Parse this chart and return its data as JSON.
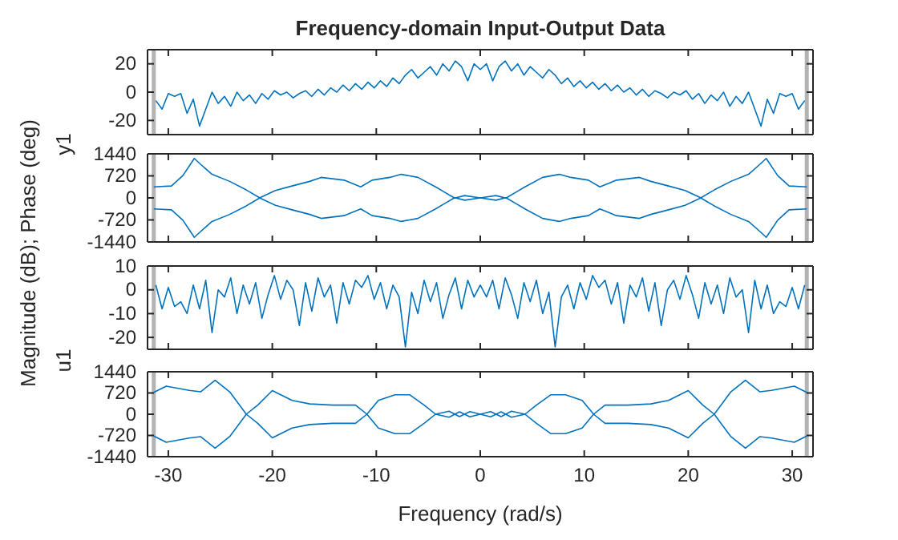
{
  "chart_data": [
    {
      "type": "line",
      "title": "Frequency-domain Input-Output Data",
      "ylabel": "y1",
      "xlim": [
        -32,
        32
      ],
      "xticks": [
        -30,
        -20,
        -10,
        0,
        10,
        20,
        30
      ],
      "ylim": [
        -30,
        30
      ],
      "yticks": [
        -20,
        0,
        20
      ],
      "tick_labels": "y",
      "grid": false,
      "ref_lines": [
        {
          "axis": "x",
          "value": -31.4,
          "color": "#b3b3b3"
        },
        {
          "axis": "x",
          "value": 31.4,
          "color": "#b3b3b3"
        }
      ],
      "x": [
        -31.2,
        -30.6,
        -30,
        -29.4,
        -28.8,
        -28.2,
        -27.6,
        -27,
        -26.4,
        -25.8,
        -25.2,
        -24.6,
        -24,
        -23.4,
        -22.8,
        -22.2,
        -21.6,
        -21,
        -20.4,
        -19.8,
        -19.2,
        -18.6,
        -18,
        -17.4,
        -16.8,
        -16.2,
        -15.6,
        -15,
        -14.4,
        -13.8,
        -13.2,
        -12.6,
        -12,
        -11.4,
        -10.8,
        -10.2,
        -9.6,
        -9,
        -8.4,
        -7.8,
        -7.2,
        -6.6,
        -6,
        -5.4,
        -4.8,
        -4.2,
        -3.6,
        -3,
        -2.4,
        -1.8,
        -1.2,
        -0.6,
        0,
        0.6,
        1.2,
        1.8,
        2.4,
        3,
        3.6,
        4.2,
        4.8,
        5.4,
        6,
        6.6,
        7.2,
        7.8,
        8.4,
        9,
        9.6,
        10.2,
        10.8,
        11.4,
        12,
        12.6,
        13.2,
        13.8,
        14.4,
        15,
        15.6,
        16.2,
        16.8,
        17.4,
        18,
        18.6,
        19.2,
        19.8,
        20.4,
        21,
        21.6,
        22.2,
        22.8,
        23.4,
        24,
        24.6,
        25.2,
        25.8,
        26.4,
        27,
        27.6,
        28.2,
        28.8,
        29.4,
        30,
        30.6,
        31.2
      ],
      "series": [
        {
          "color": "#0072bd",
          "values": [
            -6,
            -12,
            -1,
            -3,
            -1,
            -15,
            -5,
            -24,
            -12,
            0,
            -8,
            -3,
            -10,
            0,
            -6,
            -2,
            -8,
            -1,
            -5,
            1,
            -2,
            0,
            -4,
            -1,
            1,
            -3,
            2,
            -2,
            3,
            0,
            5,
            1,
            6,
            2,
            7,
            3,
            8,
            4,
            10,
            6,
            12,
            16,
            10,
            14,
            18,
            12,
            20,
            15,
            22,
            18,
            8,
            20,
            16,
            20,
            8,
            18,
            22,
            15,
            20,
            12,
            18,
            14,
            10,
            16,
            12,
            6,
            10,
            4,
            8,
            3,
            7,
            2,
            6,
            1,
            5,
            0,
            3,
            -2,
            2,
            -3,
            1,
            -1,
            -4,
            0,
            -2,
            1,
            -5,
            -1,
            -8,
            -2,
            -6,
            0,
            -10,
            -3,
            -8,
            0,
            -12,
            -24,
            -5,
            -15,
            -1,
            -3,
            -1,
            -12,
            -6
          ]
        }
      ]
    },
    {
      "type": "line",
      "ylabel": "Magnitude (dB); Phase (deg)",
      "xlim": [
        -32,
        32
      ],
      "xticks": [
        -30,
        -20,
        -10,
        0,
        10,
        20,
        30
      ],
      "ylim": [
        -1440,
        1440
      ],
      "yticks": [
        -1440,
        -720,
        0,
        720,
        1440
      ],
      "tick_labels": "y",
      "grid": false,
      "ref_lines": [
        {
          "axis": "x",
          "value": -31.4,
          "color": "#b3b3b3"
        },
        {
          "axis": "x",
          "value": 31.4,
          "color": "#b3b3b3"
        }
      ],
      "x": [
        -31.4,
        -29.7,
        -28.6,
        -27.5,
        -26.9,
        -25.8,
        -24.1,
        -22.5,
        -21.1,
        -19.7,
        -18.1,
        -16.4,
        -15.3,
        -13.1,
        -11.5,
        -10.4,
        -8.7,
        -7.6,
        -6,
        -4.3,
        -3.5,
        -2.6,
        -1.5,
        0,
        1.5,
        2.6,
        3.5,
        4.3,
        6,
        7.6,
        8.7,
        10.4,
        11.5,
        13.1,
        15.3,
        16.4,
        18.1,
        19.7,
        21.1,
        22.5,
        24.1,
        25.8,
        26.9,
        27.5,
        28.6,
        29.7,
        31.4
      ],
      "series": [
        {
          "color": "#0072bd",
          "values": [
            360,
            390,
            730,
            1290,
            1100,
            770,
            540,
            260,
            -20,
            -240,
            -390,
            -540,
            -670,
            -580,
            -360,
            -580,
            -670,
            -770,
            -670,
            -360,
            -200,
            -20,
            75,
            0,
            -75,
            20,
            200,
            360,
            670,
            770,
            670,
            580,
            360,
            580,
            670,
            540,
            390,
            240,
            20,
            -260,
            -540,
            -770,
            -1100,
            -1290,
            -730,
            -390,
            -360
          ]
        },
        {
          "color": "#0072bd",
          "values": [
            -360,
            -390,
            -730,
            -1290,
            -1100,
            -770,
            -540,
            -260,
            20,
            240,
            390,
            540,
            670,
            580,
            360,
            580,
            670,
            770,
            670,
            360,
            200,
            20,
            -75,
            0,
            75,
            -20,
            -200,
            -360,
            -670,
            -770,
            -670,
            -580,
            -360,
            -580,
            -670,
            -540,
            -390,
            -240,
            -20,
            260,
            540,
            770,
            1100,
            1290,
            730,
            390,
            360
          ]
        }
      ]
    },
    {
      "type": "line",
      "ylabel": "u1",
      "xlim": [
        -32,
        32
      ],
      "xticks": [
        -30,
        -20,
        -10,
        0,
        10,
        20,
        30
      ],
      "ylim": [
        -25,
        10
      ],
      "yticks": [
        -20,
        -10,
        0,
        10
      ],
      "tick_labels": "y",
      "grid": false,
      "ref_lines": [
        {
          "axis": "x",
          "value": -31.4,
          "color": "#b3b3b3"
        },
        {
          "axis": "x",
          "value": 31.4,
          "color": "#b3b3b3"
        }
      ],
      "x": [
        -31.2,
        -30.6,
        -30,
        -29.4,
        -28.8,
        -28.2,
        -27.6,
        -27,
        -26.4,
        -25.8,
        -25.2,
        -24.6,
        -24,
        -23.4,
        -22.8,
        -22.2,
        -21.6,
        -21,
        -20.4,
        -19.8,
        -19.2,
        -18.6,
        -18,
        -17.4,
        -16.8,
        -16.2,
        -15.6,
        -15,
        -14.4,
        -13.8,
        -13.2,
        -12.6,
        -12,
        -11.4,
        -10.8,
        -10.2,
        -9.6,
        -9,
        -8.4,
        -7.8,
        -7.2,
        -6.6,
        -6,
        -5.4,
        -4.8,
        -4.2,
        -3.6,
        -3,
        -2.4,
        -1.8,
        -1.2,
        -0.6,
        0,
        0.6,
        1.2,
        1.8,
        2.4,
        3,
        3.6,
        4.2,
        4.8,
        5.4,
        6,
        6.6,
        7.2,
        7.8,
        8.4,
        9,
        9.6,
        10.2,
        10.8,
        11.4,
        12,
        12.6,
        13.2,
        13.8,
        14.4,
        15,
        15.6,
        16.2,
        16.8,
        17.4,
        18,
        18.6,
        19.2,
        19.8,
        20.4,
        21,
        21.6,
        22.2,
        22.8,
        23.4,
        24,
        24.6,
        25.2,
        25.8,
        26.4,
        27,
        27.6,
        28.2,
        28.8,
        29.4,
        30,
        30.6,
        31.2
      ],
      "series": [
        {
          "color": "#0072bd",
          "values": [
            2,
            -8,
            1,
            -7,
            -5,
            -10,
            2,
            -8,
            4,
            -18,
            0,
            -3,
            5,
            -10,
            2,
            -6,
            3,
            -12,
            -2,
            6,
            -4,
            4,
            0,
            -15,
            3,
            -9,
            5,
            -3,
            2,
            -14,
            3,
            -6,
            4,
            1,
            6,
            -4,
            3,
            -8,
            2,
            -3,
            -24,
            -1,
            -10,
            4,
            -5,
            3,
            -12,
            -2,
            5,
            -8,
            4,
            -3,
            2,
            -3,
            4,
            -8,
            5,
            -2,
            -12,
            3,
            -5,
            4,
            -10,
            -1,
            -24,
            -3,
            2,
            -8,
            3,
            -4,
            6,
            1,
            4,
            -6,
            3,
            -14,
            2,
            -3,
            5,
            -9,
            3,
            -15,
            0,
            4,
            -4,
            6,
            -2,
            -12,
            3,
            -6,
            2,
            -10,
            5,
            -3,
            0,
            -18,
            4,
            -8,
            2,
            -10,
            -5,
            -7,
            1,
            -8,
            2
          ]
        }
      ]
    },
    {
      "type": "line",
      "xlabel": "Frequency (rad/s)",
      "xlim": [
        -32,
        32
      ],
      "xticks": [
        -30,
        -20,
        -10,
        0,
        10,
        20,
        30
      ],
      "ylim": [
        -1440,
        1440
      ],
      "yticks": [
        -1440,
        -720,
        0,
        720,
        1440
      ],
      "grid": false,
      "ref_lines": [
        {
          "axis": "x",
          "value": -31.4,
          "color": "#b3b3b3"
        },
        {
          "axis": "x",
          "value": 31.4,
          "color": "#b3b3b3"
        }
      ],
      "x": [
        -31.4,
        -30.2,
        -28,
        -26.9,
        -25.5,
        -24.1,
        -22.5,
        -21.4,
        -20,
        -18.1,
        -16.4,
        -14.2,
        -12,
        -10.9,
        -9.8,
        -8.2,
        -6.8,
        -5.4,
        -4.3,
        -3,
        -2,
        -1,
        0,
        1,
        2,
        3,
        4.3,
        5.4,
        6.8,
        8.2,
        9.8,
        10.9,
        12,
        14.2,
        16.4,
        18.1,
        20,
        21.4,
        22.5,
        24.1,
        25.5,
        26.9,
        28,
        30.2,
        31.4
      ],
      "series": [
        {
          "color": "#0072bd",
          "values": [
            740,
            950,
            810,
            760,
            1150,
            760,
            0,
            -310,
            -800,
            -470,
            -350,
            -310,
            -310,
            0,
            470,
            660,
            660,
            310,
            0,
            -100,
            80,
            -90,
            0,
            90,
            -80,
            100,
            0,
            -310,
            -660,
            -660,
            -470,
            0,
            310,
            310,
            350,
            470,
            800,
            310,
            0,
            -760,
            -1150,
            -760,
            -810,
            -950,
            -740
          ]
        },
        {
          "color": "#0072bd",
          "values": [
            -740,
            -950,
            -810,
            -760,
            -1150,
            -760,
            0,
            310,
            800,
            470,
            350,
            310,
            310,
            0,
            -470,
            -660,
            -660,
            -310,
            0,
            100,
            -80,
            90,
            0,
            -90,
            80,
            -100,
            0,
            310,
            660,
            660,
            470,
            0,
            -310,
            -310,
            -350,
            -470,
            -800,
            -310,
            0,
            760,
            1150,
            760,
            810,
            950,
            740
          ]
        }
      ]
    }
  ]
}
